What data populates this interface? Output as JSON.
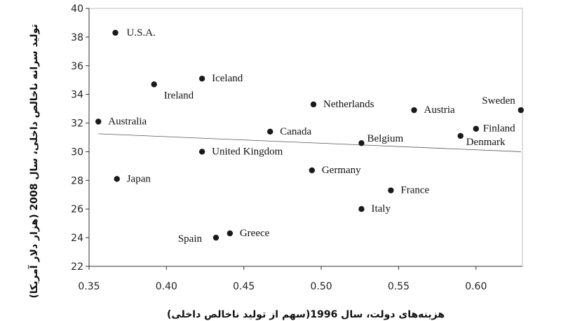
{
  "chart_data": {
    "type": "scatter",
    "xlabel": "هزینه‌های دولت، سال 1996(سهم از تولید ناخالص داخلی)",
    "ylabel": "تولید سرانه ناخالص داخلی، سال 2008 (هزار دلار آمریکا)",
    "xlim": [
      0.35,
      0.63
    ],
    "ylim": [
      22,
      40
    ],
    "x_ticks": [
      "0.35",
      "0.40",
      "0.45",
      "0.50",
      "0.55",
      "0.60"
    ],
    "y_ticks": [
      "22",
      "24",
      "26",
      "28",
      "30",
      "32",
      "34",
      "36",
      "38",
      "40"
    ],
    "grid": false,
    "trendline": {
      "x": [
        0.356,
        0.629
      ],
      "y": [
        31.25,
        30.0
      ]
    },
    "points": [
      {
        "label": "U.S.A.",
        "x": 0.367,
        "y": 38.3
      },
      {
        "label": "Iceland",
        "x": 0.423,
        "y": 35.1
      },
      {
        "label": "Ireland",
        "x": 0.392,
        "y": 34.7
      },
      {
        "label": "Netherlands",
        "x": 0.495,
        "y": 33.3
      },
      {
        "label": "Austria",
        "x": 0.56,
        "y": 32.9
      },
      {
        "label": "Sweden",
        "x": 0.629,
        "y": 32.9
      },
      {
        "label": "Australia",
        "x": 0.356,
        "y": 32.1
      },
      {
        "label": "Finland",
        "x": 0.6,
        "y": 31.6
      },
      {
        "label": "Canada",
        "x": 0.467,
        "y": 31.4
      },
      {
        "label": "Denmark",
        "x": 0.59,
        "y": 31.1
      },
      {
        "label": "Belgium",
        "x": 0.526,
        "y": 30.6
      },
      {
        "label": "United Kingdom",
        "x": 0.423,
        "y": 30.0
      },
      {
        "label": "Germany",
        "x": 0.494,
        "y": 28.7
      },
      {
        "label": "Japan",
        "x": 0.368,
        "y": 28.1
      },
      {
        "label": "France",
        "x": 0.545,
        "y": 27.3
      },
      {
        "label": "Italy",
        "x": 0.526,
        "y": 26.0
      },
      {
        "label": "Greece",
        "x": 0.441,
        "y": 24.3
      },
      {
        "label": "Spain",
        "x": 0.432,
        "y": 24.0
      }
    ]
  }
}
